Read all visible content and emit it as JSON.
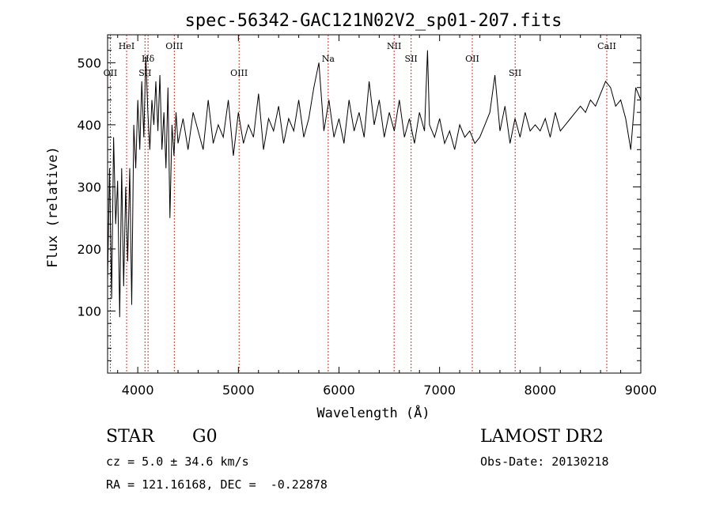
{
  "chart_data": {
    "type": "line",
    "title": "spec-56342-GAC121N02V2_sp01-207.fits",
    "xlabel": "Wavelength (Å)",
    "ylabel": "Flux (relative)",
    "xlim": [
      3700,
      9000
    ],
    "ylim": [
      0,
      545
    ],
    "xticks": [
      4000,
      5000,
      6000,
      7000,
      8000,
      9000
    ],
    "yticks": [
      100,
      200,
      300,
      400,
      500
    ],
    "grid": false,
    "line_color": "#000000",
    "marker_color": "#c0392b",
    "spectrum": [
      [
        3700,
        150
      ],
      [
        3720,
        330
      ],
      [
        3740,
        120
      ],
      [
        3760,
        380
      ],
      [
        3780,
        240
      ],
      [
        3800,
        310
      ],
      [
        3820,
        90
      ],
      [
        3840,
        330
      ],
      [
        3860,
        140
      ],
      [
        3880,
        300
      ],
      [
        3900,
        180
      ],
      [
        3920,
        330
      ],
      [
        3940,
        110
      ],
      [
        3960,
        400
      ],
      [
        3980,
        330
      ],
      [
        4000,
        440
      ],
      [
        4020,
        360
      ],
      [
        4040,
        470
      ],
      [
        4060,
        380
      ],
      [
        4080,
        510
      ],
      [
        4100,
        420
      ],
      [
        4120,
        360
      ],
      [
        4140,
        440
      ],
      [
        4160,
        400
      ],
      [
        4180,
        470
      ],
      [
        4200,
        390
      ],
      [
        4220,
        480
      ],
      [
        4240,
        360
      ],
      [
        4260,
        420
      ],
      [
        4280,
        330
      ],
      [
        4300,
        460
      ],
      [
        4320,
        250
      ],
      [
        4340,
        400
      ],
      [
        4360,
        350
      ],
      [
        4380,
        420
      ],
      [
        4400,
        370
      ],
      [
        4450,
        410
      ],
      [
        4500,
        360
      ],
      [
        4550,
        420
      ],
      [
        4600,
        390
      ],
      [
        4650,
        360
      ],
      [
        4700,
        440
      ],
      [
        4750,
        370
      ],
      [
        4800,
        400
      ],
      [
        4850,
        380
      ],
      [
        4900,
        440
      ],
      [
        4950,
        350
      ],
      [
        5000,
        420
      ],
      [
        5050,
        370
      ],
      [
        5100,
        400
      ],
      [
        5150,
        380
      ],
      [
        5200,
        450
      ],
      [
        5250,
        360
      ],
      [
        5300,
        410
      ],
      [
        5350,
        390
      ],
      [
        5400,
        430
      ],
      [
        5450,
        370
      ],
      [
        5500,
        410
      ],
      [
        5550,
        390
      ],
      [
        5600,
        440
      ],
      [
        5650,
        380
      ],
      [
        5700,
        410
      ],
      [
        5750,
        460
      ],
      [
        5800,
        500
      ],
      [
        5850,
        390
      ],
      [
        5900,
        440
      ],
      [
        5950,
        380
      ],
      [
        6000,
        410
      ],
      [
        6050,
        370
      ],
      [
        6100,
        440
      ],
      [
        6150,
        390
      ],
      [
        6200,
        420
      ],
      [
        6250,
        380
      ],
      [
        6300,
        470
      ],
      [
        6350,
        400
      ],
      [
        6400,
        440
      ],
      [
        6450,
        380
      ],
      [
        6500,
        420
      ],
      [
        6550,
        390
      ],
      [
        6600,
        440
      ],
      [
        6650,
        380
      ],
      [
        6700,
        410
      ],
      [
        6750,
        370
      ],
      [
        6800,
        420
      ],
      [
        6850,
        390
      ],
      [
        6880,
        520
      ],
      [
        6900,
        400
      ],
      [
        6950,
        380
      ],
      [
        7000,
        410
      ],
      [
        7050,
        370
      ],
      [
        7100,
        390
      ],
      [
        7150,
        360
      ],
      [
        7200,
        400
      ],
      [
        7250,
        380
      ],
      [
        7300,
        390
      ],
      [
        7350,
        370
      ],
      [
        7400,
        380
      ],
      [
        7450,
        400
      ],
      [
        7500,
        420
      ],
      [
        7550,
        480
      ],
      [
        7600,
        390
      ],
      [
        7650,
        430
      ],
      [
        7700,
        370
      ],
      [
        7750,
        410
      ],
      [
        7800,
        380
      ],
      [
        7850,
        420
      ],
      [
        7900,
        390
      ],
      [
        7950,
        400
      ],
      [
        8000,
        390
      ],
      [
        8050,
        410
      ],
      [
        8100,
        380
      ],
      [
        8150,
        420
      ],
      [
        8200,
        390
      ],
      [
        8250,
        400
      ],
      [
        8300,
        410
      ],
      [
        8350,
        420
      ],
      [
        8400,
        430
      ],
      [
        8450,
        420
      ],
      [
        8500,
        440
      ],
      [
        8550,
        430
      ],
      [
        8600,
        450
      ],
      [
        8650,
        470
      ],
      [
        8700,
        460
      ],
      [
        8750,
        430
      ],
      [
        8800,
        440
      ],
      [
        8850,
        410
      ],
      [
        8900,
        360
      ],
      [
        8950,
        460
      ],
      [
        9000,
        440
      ]
    ],
    "lines": [
      {
        "label": "OII",
        "x": 3727,
        "row": 2
      },
      {
        "label": "HeI",
        "x": 3889,
        "row": 0
      },
      {
        "label": "Hδ",
        "x": 4102,
        "row": 1
      },
      {
        "label": "SII",
        "x": 4072,
        "row": 2
      },
      {
        "label": "OIII",
        "x": 4363,
        "row": 0
      },
      {
        "label": "OIII",
        "x": 5007,
        "row": 2
      },
      {
        "label": "Na",
        "x": 5893,
        "row": 1
      },
      {
        "label": "NII",
        "x": 6548,
        "row": 0
      },
      {
        "label": "SII",
        "x": 6717,
        "row": 1
      },
      {
        "label": "OII",
        "x": 7325,
        "row": 1
      },
      {
        "label": "SII",
        "x": 7751,
        "row": 2
      },
      {
        "label": "CaII",
        "x": 8662,
        "row": 0
      }
    ]
  },
  "info": {
    "object_class": "STAR",
    "subclass": "G0",
    "survey": "LAMOST DR2",
    "cz": "cz = 5.0 ± 34.6 km/s",
    "obs_date": "Obs-Date: 20130218",
    "coords": "RA = 121.16168, DEC =  -0.22878"
  }
}
